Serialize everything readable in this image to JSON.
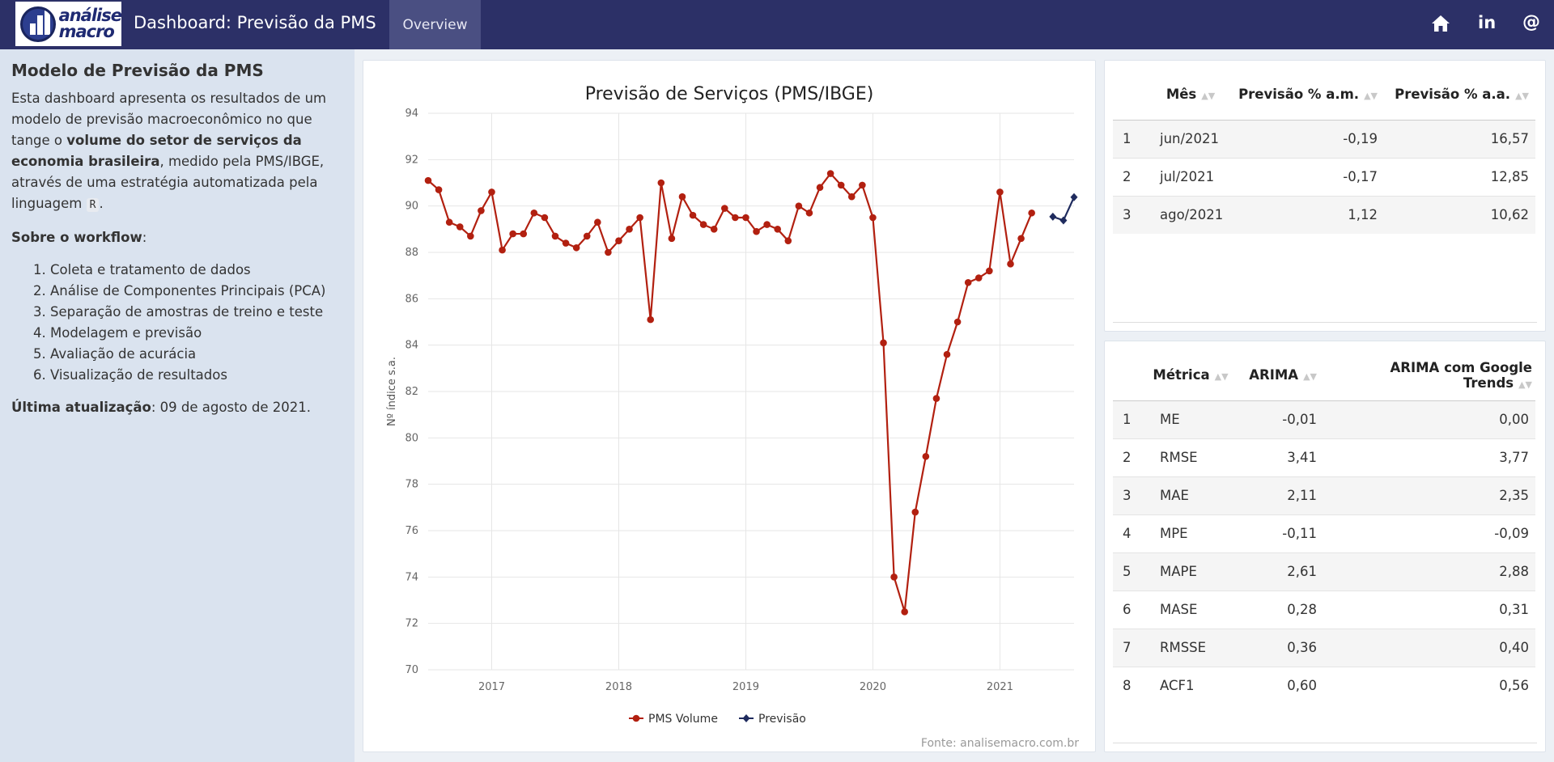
{
  "header": {
    "logo_text_1": "análise",
    "logo_text_2": "macro",
    "title": "Dashboard: Previsão da PMS",
    "tab_overview": "Overview",
    "icon_home": "home-icon",
    "icon_linkedin": "linkedin-icon",
    "linkedin_glyph": "in",
    "icon_email": "at-icon",
    "email_glyph": "@"
  },
  "sidebar": {
    "heading": "Modelo de Previsão da PMS",
    "intro_1": "Esta dashboard apresenta os resultados de um modelo de previsão macroeconômico no que tange o ",
    "intro_bold": "volume do setor de serviços da economia brasileira",
    "intro_2": ", medido pela PMS/IBGE, através de uma estratégia automatizada pela linguagem ",
    "intro_code": "R",
    "intro_end": ".",
    "workflow_label": "Sobre o workflow",
    "workflow_colon": ":",
    "workflow_steps": [
      "Coleta e tratamento de dados",
      "Análise de Componentes Principais (PCA)",
      "Separação de amostras de treino e teste",
      "Modelagem e previsão",
      "Avaliação de acurácia",
      "Visualização de resultados"
    ],
    "update_label": "Última atualização",
    "update_value": ": 09 de agosto de 2021."
  },
  "forecast_table": {
    "columns": [
      "",
      "Mês",
      "Previsão % a.m.",
      "Previsão % a.a."
    ],
    "rows": [
      [
        "1",
        "jun/2021",
        "-0,19",
        "16,57"
      ],
      [
        "2",
        "jul/2021",
        "-0,17",
        "12,85"
      ],
      [
        "3",
        "ago/2021",
        "1,12",
        "10,62"
      ]
    ]
  },
  "metrics_table": {
    "columns": [
      "",
      "Métrica",
      "ARIMA",
      "ARIMA com Google Trends"
    ],
    "rows": [
      [
        "1",
        "ME",
        "-0,01",
        "0,00"
      ],
      [
        "2",
        "RMSE",
        "3,41",
        "3,77"
      ],
      [
        "3",
        "MAE",
        "2,11",
        "2,35"
      ],
      [
        "4",
        "MPE",
        "-0,11",
        "-0,09"
      ],
      [
        "5",
        "MAPE",
        "2,61",
        "2,88"
      ],
      [
        "6",
        "MASE",
        "0,28",
        "0,31"
      ],
      [
        "7",
        "RMSSE",
        "0,36",
        "0,40"
      ],
      [
        "8",
        "ACF1",
        "0,60",
        "0,56"
      ]
    ]
  },
  "chart_data": {
    "type": "line",
    "title": "Previsão de Serviços (PMS/IBGE)",
    "xlabel": "",
    "ylabel": "Nº índice s.a.",
    "source": "Fonte: analisemacro.com.br",
    "ylim": [
      70,
      94
    ],
    "yticks": [
      70,
      72,
      74,
      76,
      78,
      80,
      82,
      84,
      86,
      88,
      90,
      92,
      94
    ],
    "xlim": [
      "2016-07-01",
      "2021-08-01"
    ],
    "xticks": [
      "2017",
      "2018",
      "2019",
      "2020",
      "2021"
    ],
    "legend_position": "bottom",
    "grid": true,
    "series": [
      {
        "name": "PMS Volume",
        "color": "#b22010",
        "marker": "circle",
        "points": [
          [
            "2016-07",
            91.1
          ],
          [
            "2016-08",
            90.7
          ],
          [
            "2016-09",
            89.3
          ],
          [
            "2016-10",
            89.1
          ],
          [
            "2016-11",
            88.7
          ],
          [
            "2016-12",
            89.8
          ],
          [
            "2017-01",
            90.6
          ],
          [
            "2017-02",
            88.1
          ],
          [
            "2017-03",
            88.8
          ],
          [
            "2017-04",
            88.8
          ],
          [
            "2017-05",
            89.7
          ],
          [
            "2017-06",
            89.5
          ],
          [
            "2017-07",
            88.7
          ],
          [
            "2017-08",
            88.4
          ],
          [
            "2017-09",
            88.2
          ],
          [
            "2017-10",
            88.7
          ],
          [
            "2017-11",
            89.3
          ],
          [
            "2017-12",
            88.0
          ],
          [
            "2018-01",
            88.5
          ],
          [
            "2018-02",
            89.0
          ],
          [
            "2018-03",
            89.5
          ],
          [
            "2018-04",
            85.1
          ],
          [
            "2018-05",
            91.0
          ],
          [
            "2018-06",
            88.6
          ],
          [
            "2018-07",
            90.4
          ],
          [
            "2018-08",
            89.6
          ],
          [
            "2018-09",
            89.2
          ],
          [
            "2018-10",
            89.0
          ],
          [
            "2018-11",
            89.9
          ],
          [
            "2018-12",
            89.5
          ],
          [
            "2019-01",
            89.5
          ],
          [
            "2019-02",
            88.9
          ],
          [
            "2019-03",
            89.2
          ],
          [
            "2019-04",
            89.0
          ],
          [
            "2019-05",
            88.5
          ],
          [
            "2019-06",
            90.0
          ],
          [
            "2019-07",
            89.7
          ],
          [
            "2019-08",
            90.8
          ],
          [
            "2019-09",
            91.4
          ],
          [
            "2019-10",
            90.9
          ],
          [
            "2019-11",
            90.4
          ],
          [
            "2019-12",
            90.9
          ],
          [
            "2020-01",
            89.5
          ],
          [
            "2020-02",
            84.1
          ],
          [
            "2020-03",
            74.0
          ],
          [
            "2020-04",
            72.5
          ],
          [
            "2020-05",
            76.8
          ],
          [
            "2020-06",
            79.2
          ],
          [
            "2020-07",
            81.7
          ],
          [
            "2020-08",
            83.6
          ],
          [
            "2020-09",
            85.0
          ],
          [
            "2020-10",
            86.7
          ],
          [
            "2020-11",
            86.9
          ],
          [
            "2020-12",
            87.2
          ],
          [
            "2021-01",
            90.6
          ],
          [
            "2021-02",
            87.5
          ],
          [
            "2021-03",
            88.6
          ],
          [
            "2021-04",
            89.7
          ]
        ]
      },
      {
        "name": "Previsão",
        "color": "#1f2b5e",
        "marker": "diamond",
        "points": [
          [
            "2021-06",
            89.54
          ],
          [
            "2021-07",
            89.38
          ],
          [
            "2021-08",
            90.38
          ]
        ]
      }
    ]
  }
}
